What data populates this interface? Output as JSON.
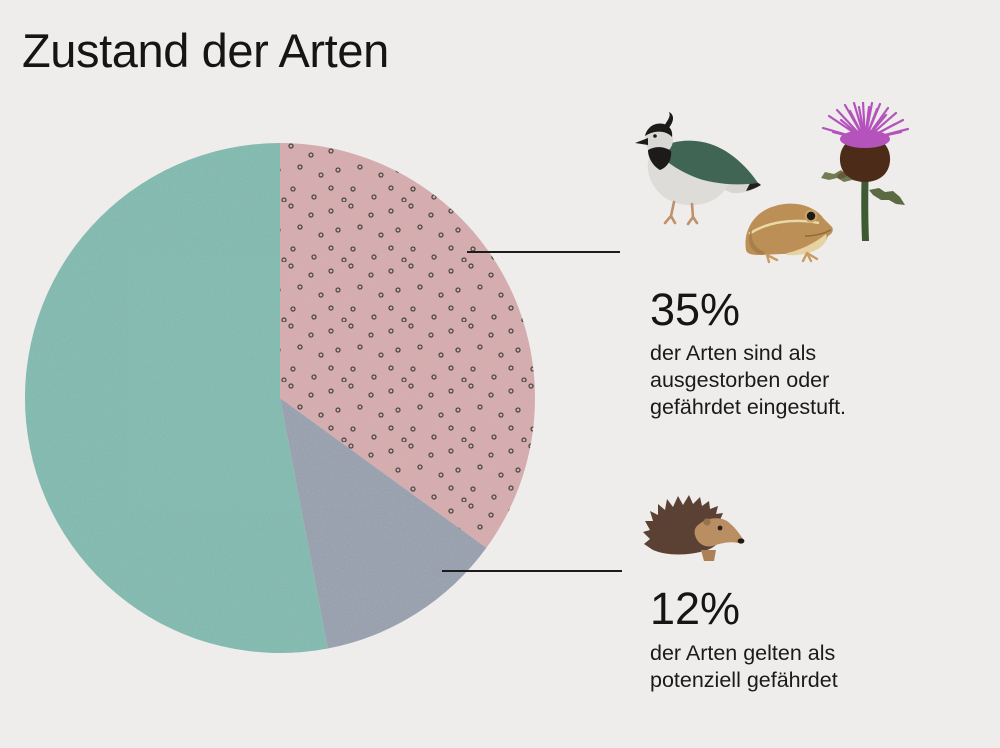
{
  "title": "Zustand der Arten",
  "colors": {
    "background": "#eeedeb",
    "text": "#1a1a1a",
    "leader_line": "#1c1c1c",
    "slice_endangered_pink": "#dbaaac",
    "slice_potentially_gray": "#949dac",
    "slice_rest_teal": "#7abbae",
    "pattern_dot": "#33302b"
  },
  "chart_data": {
    "type": "pie",
    "title": "Zustand der Arten",
    "start_angle_deg": 0,
    "direction": "clockwise",
    "legend_position": "right-callouts",
    "slices": [
      {
        "name": "ausgestorben-oder-gefaehrdet",
        "value": 35,
        "unit": "%",
        "color": "#dbaaac",
        "pattern": "dots",
        "label": "der Arten sind als ausgestorben oder gefährdet eingestuft."
      },
      {
        "name": "potenziell-gefaehrdet",
        "value": 12,
        "unit": "%",
        "color": "#949dac",
        "pattern": "none",
        "label": "der Arten gelten als potenziell gefährdet"
      },
      {
        "name": "uebrige-arten",
        "value": 53,
        "unit": "%",
        "color": "#7abbae",
        "pattern": "none",
        "label": ""
      }
    ]
  },
  "annotations": [
    {
      "percent": "35%",
      "lines": [
        "der Arten sind als",
        "ausgestorben oder",
        "gefährdet eingestuft."
      ],
      "icons": [
        "lapwing-bird",
        "frog",
        "thistle-flower"
      ]
    },
    {
      "percent": "12%",
      "lines": [
        "der Arten gelten als",
        "potenziell gefährdet"
      ],
      "icons": [
        "hedgehog"
      ]
    }
  ]
}
